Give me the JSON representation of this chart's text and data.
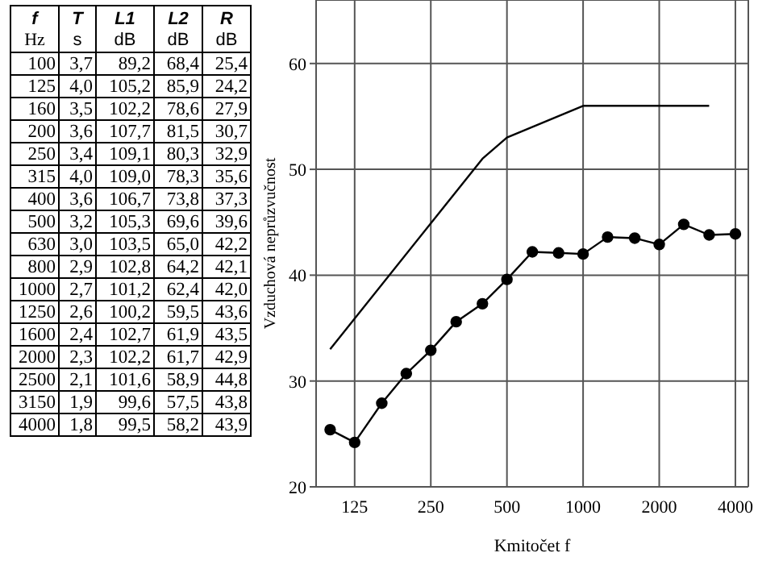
{
  "chart_data": [
    {
      "type": "other",
      "annotations": [
        "f",
        "T",
        "L1",
        "L2",
        "R",
        "Hz",
        "s",
        "dB",
        "dB",
        "dB",
        "100",
        "3,7",
        "89,2",
        "68,4",
        "25,4",
        "125",
        "4,0",
        "105,2",
        "85,9",
        "24,2",
        "160",
        "3,5",
        "102,2",
        "78,6",
        "27,9",
        "200",
        "3,6",
        "107,7",
        "81,5",
        "30,7",
        "250",
        "3,4",
        "109,1",
        "80,3",
        "32,9",
        "315",
        "4,0",
        "109,0",
        "78,3",
        "35,6",
        "400",
        "3,6",
        "106,7",
        "73,8",
        "37,3",
        "500",
        "3,2",
        "105,3",
        "69,6",
        "39,6",
        "630",
        "3,0",
        "103,5",
        "65,0",
        "42,2",
        "800",
        "2,9",
        "102,8",
        "64,2",
        "42,1",
        "1000",
        "2,7",
        "101,2",
        "62,4",
        "42,0",
        "1250",
        "2,6",
        "100,2",
        "59,5",
        "43,6",
        "1600",
        "2,4",
        "102,7",
        "61,9",
        "43,5",
        "2000",
        "2,3",
        "102,2",
        "61,7",
        "42,9",
        "2500",
        "2,1",
        "101,6",
        "58,9",
        "44,8",
        "3150",
        "1,9",
        "99,6",
        "57,5",
        "43,8",
        "4000",
        "1,8",
        "99,5",
        "58,2",
        "43,9"
      ]
    },
    {
      "type": "line",
      "xlabel": "Kmitočet f",
      "ylabel": "Vzduchová neprůzvučnost",
      "log": "x",
      "grid": true,
      "xlim": [
        88,
        4500
      ],
      "xticks": [
        125,
        250,
        500,
        1000,
        2000,
        4000
      ],
      "ylim": [
        20,
        66
      ],
      "yticks": [
        20,
        30,
        40,
        50,
        60
      ],
      "series": [
        {
          "color": "#000000",
          "marker": "none",
          "x": [
            100,
            400,
            500,
            1000,
            3150
          ],
          "values": [
            33,
            51,
            53,
            56,
            56
          ]
        },
        {
          "color": "#000000",
          "marker": "circle",
          "x": [
            100,
            125,
            160,
            200,
            250,
            315,
            400,
            500,
            630,
            800,
            1000,
            1250,
            1600,
            2000,
            2500,
            3150,
            4000
          ],
          "values": [
            25.4,
            24.2,
            27.9,
            30.7,
            32.9,
            35.6,
            37.3,
            39.6,
            42.2,
            42.1,
            42.0,
            43.6,
            43.5,
            42.9,
            44.8,
            43.8,
            43.9
          ]
        }
      ]
    }
  ]
}
